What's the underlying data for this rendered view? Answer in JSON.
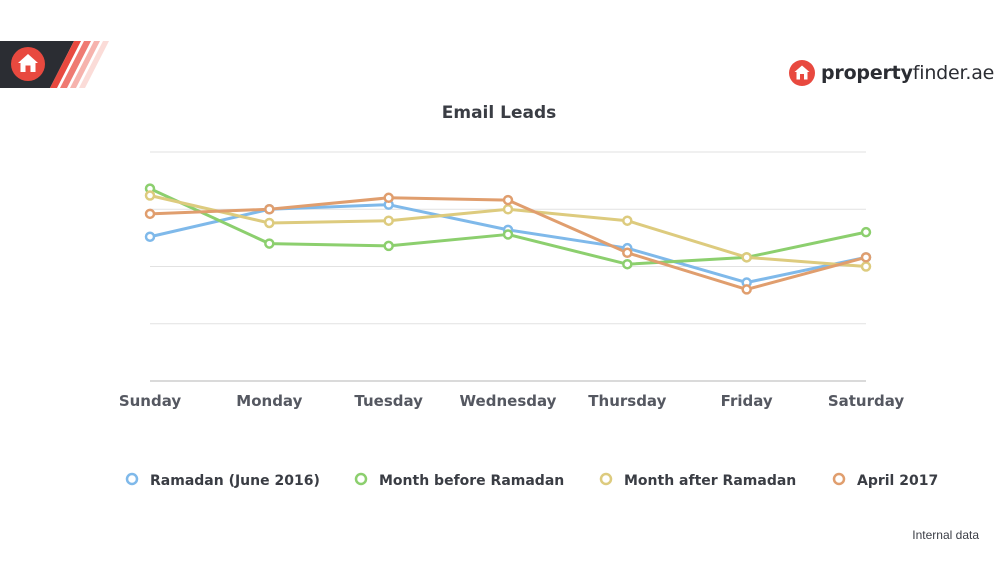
{
  "brand": {
    "name_bold": "property",
    "name_rest": "finder.ae"
  },
  "footnote": "Internal data",
  "colors": {
    "brand_red": "#e8493f",
    "dark": "#2b2d33",
    "grid": "#e2e2e2",
    "axis": "#b5b5b5"
  },
  "icons": {
    "corner": "home-icon",
    "brand": "home-icon"
  },
  "chart_data": {
    "type": "line",
    "title": "Email Leads",
    "xlabel": "",
    "ylabel": "",
    "categories": [
      "Sunday",
      "Monday",
      "Tuesday",
      "Wednesday",
      "Thursday",
      "Friday",
      "Saturday"
    ],
    "ylim": [
      0,
      100
    ],
    "grid": true,
    "y_tick_labels": false,
    "legend_position": "bottom",
    "series": [
      {
        "name": "Ramadan (June 2016)",
        "color": "#7fb9ea",
        "values": [
          63,
          75,
          77,
          66,
          58,
          43,
          54
        ]
      },
      {
        "name": "Month before Ramadan",
        "color": "#8ccf6e",
        "values": [
          84,
          60,
          59,
          64,
          51,
          54,
          65
        ]
      },
      {
        "name": "Month after Ramadan",
        "color": "#ddcb7e",
        "values": [
          81,
          69,
          70,
          75,
          70,
          54,
          50
        ]
      },
      {
        "name": "April 2017",
        "color": "#e09e6e",
        "values": [
          73,
          75,
          80,
          79,
          56,
          40,
          54
        ]
      }
    ]
  }
}
